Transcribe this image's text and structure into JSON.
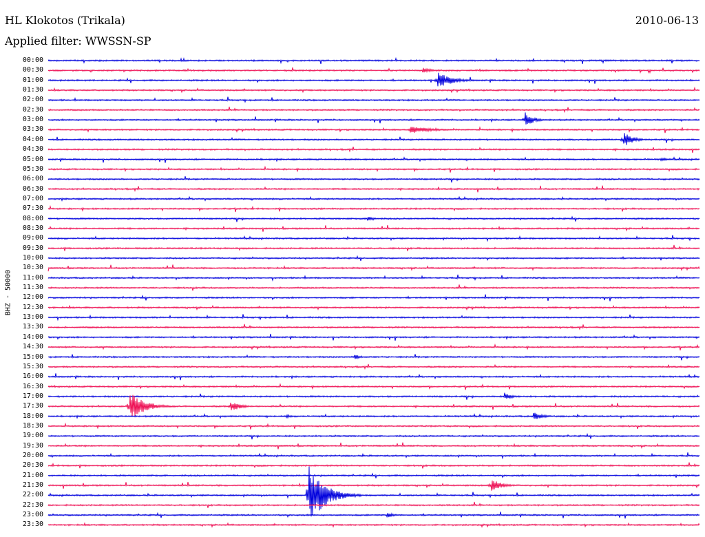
{
  "header": {
    "station": "HL Klokotos (Trikala)",
    "date": "2010-06-13",
    "filter": "Applied filter: WWSSN-SP"
  },
  "side_label": "BHZ - 50000",
  "colors": {
    "odd": "#0000dd",
    "even": "#ee1155"
  },
  "chart_data": {
    "type": "line",
    "title": "",
    "xlabel": "",
    "ylabel": "BHZ - 50000",
    "rows": [
      "00:00",
      "00:30",
      "01:00",
      "01:30",
      "02:00",
      "02:30",
      "03:00",
      "03:30",
      "04:00",
      "04:30",
      "05:00",
      "05:30",
      "06:00",
      "06:30",
      "07:00",
      "07:30",
      "08:00",
      "08:30",
      "09:00",
      "09:30",
      "10:00",
      "10:30",
      "11:00",
      "11:30",
      "12:00",
      "12:30",
      "13:00",
      "13:30",
      "14:00",
      "14:30",
      "15:00",
      "15:30",
      "16:00",
      "16:30",
      "17:00",
      "17:30",
      "18:00",
      "18:30",
      "19:00",
      "19:30",
      "20:00",
      "20:30",
      "21:00",
      "21:30",
      "22:00",
      "22:30",
      "23:00",
      "23:30"
    ],
    "events": [
      {
        "row": 1,
        "t": 0.575,
        "amp": 4,
        "len": 0.05
      },
      {
        "row": 2,
        "t": 0.598,
        "amp": 12,
        "len": 0.07
      },
      {
        "row": 6,
        "t": 0.732,
        "amp": 12,
        "len": 0.04
      },
      {
        "row": 7,
        "t": 0.555,
        "amp": 6,
        "len": 0.1
      },
      {
        "row": 8,
        "t": 0.883,
        "amp": 14,
        "len": 0.04
      },
      {
        "row": 10,
        "t": 0.94,
        "amp": 3,
        "len": 0.04
      },
      {
        "row": 16,
        "t": 0.49,
        "amp": 5,
        "len": 0.03
      },
      {
        "row": 30,
        "t": 0.47,
        "amp": 4,
        "len": 0.04
      },
      {
        "row": 34,
        "t": 0.7,
        "amp": 6,
        "len": 0.04
      },
      {
        "row": 35,
        "t": 0.125,
        "amp": 22,
        "len": 0.07
      },
      {
        "row": 35,
        "t": 0.28,
        "amp": 8,
        "len": 0.05
      },
      {
        "row": 36,
        "t": 0.745,
        "amp": 6,
        "len": 0.05
      },
      {
        "row": 36,
        "t": 0.365,
        "amp": 3,
        "len": 0.03
      },
      {
        "row": 43,
        "t": 0.68,
        "amp": 10,
        "len": 0.05
      },
      {
        "row": 44,
        "t": 0.4,
        "amp": 44,
        "len": 0.08
      },
      {
        "row": 46,
        "t": 0.52,
        "amp": 4,
        "len": 0.04
      }
    ]
  }
}
